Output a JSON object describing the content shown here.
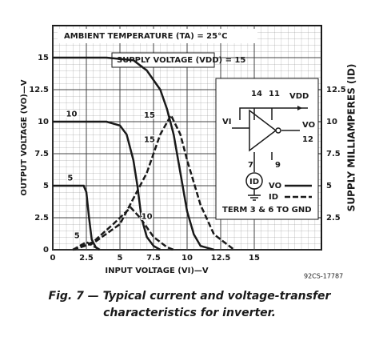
{
  "chart_data": {
    "type": "line",
    "title": "AMBIENT TEMPERATURE (TA) = 25°C",
    "subtitle": "SUPPLY VOLTAGE (VDD) = 15",
    "x_label": "INPUT VOLTAGE (VI)—V",
    "y_label": "OUTPUT VOLTAGE (VO)—V",
    "y2_label": "SUPPLY MILLIAMPERES (ID)",
    "xlim": [
      0,
      20
    ],
    "ylim": [
      0,
      17.5
    ],
    "y2lim": [
      0,
      17.5
    ],
    "xticks": [
      0,
      2.5,
      5,
      7.5,
      10,
      12.5,
      15
    ],
    "yticks": [
      0,
      2.5,
      5,
      7.5,
      10,
      12.5,
      15
    ],
    "y2ticks": [
      2.5,
      5,
      7.5,
      10,
      12.5
    ],
    "grid": true,
    "color": "#1a1a1a",
    "series": [
      {
        "label": "15",
        "dash": false,
        "label_at": [
          7.2,
          10.5
        ],
        "x": [
          0,
          4,
          6,
          7,
          8,
          8.5,
          9,
          9.5,
          10,
          10.5,
          11,
          12
        ],
        "values": [
          15,
          15,
          14.8,
          14,
          12.5,
          11,
          9,
          6,
          3,
          1.2,
          0.3,
          0
        ]
      },
      {
        "label": "10",
        "dash": false,
        "label_at": [
          1.4,
          10.6
        ],
        "x": [
          0,
          4,
          5,
          5.5,
          6,
          6.3,
          6.6,
          7,
          7.5,
          8
        ],
        "values": [
          10,
          10,
          9.7,
          9,
          7,
          5,
          2.5,
          1,
          0.3,
          0
        ]
      },
      {
        "label": "5",
        "dash": false,
        "label_at": [
          1.3,
          5.6
        ],
        "x": [
          0,
          2.3,
          2.5,
          2.7,
          2.9,
          3.2,
          3.5
        ],
        "values": [
          5,
          5,
          4.5,
          2.5,
          0.8,
          0.2,
          0
        ]
      },
      {
        "label": "15",
        "dash": true,
        "axis": "y2",
        "label_at": [
          7.2,
          8.6
        ],
        "x": [
          1.5,
          3,
          5,
          7,
          8,
          8.8,
          9.5,
          10,
          11,
          12,
          13.5
        ],
        "values": [
          0,
          0.5,
          2,
          6,
          9,
          10.5,
          9,
          7,
          3.5,
          1.2,
          0
        ]
      },
      {
        "label": "10",
        "dash": true,
        "axis": "y2",
        "label_at": [
          7,
          2.6
        ],
        "x": [
          1.5,
          3,
          4.5,
          5.8,
          6.5,
          7.5,
          8.5,
          9
        ],
        "values": [
          0,
          0.6,
          2,
          3.3,
          2.5,
          1,
          0.2,
          0
        ]
      },
      {
        "label": "5",
        "dash": true,
        "axis": "y2",
        "label_at": [
          1.8,
          1.1
        ],
        "x": [
          1.5,
          2.5,
          3,
          3.5
        ],
        "values": [
          0,
          0.6,
          0.3,
          0
        ]
      }
    ],
    "legend": [
      {
        "label": "VO",
        "dash": false
      },
      {
        "label": "ID",
        "dash": true
      }
    ],
    "inset": {
      "pin_top_left": "14",
      "pin_top_right": "11",
      "vdd": "VDD",
      "vi": "VI",
      "vo": "VO",
      "pin_out": "12",
      "pin_bottom_left": "7",
      "pin_bottom_right": "9",
      "meter": "ID",
      "note": "TERM 3 & 6 TO GND"
    },
    "figure_code": "92CS-17787",
    "caption": [
      "Fig. 7 — Typical current and voltage-transfer",
      "characteristics for inverter."
    ]
  }
}
